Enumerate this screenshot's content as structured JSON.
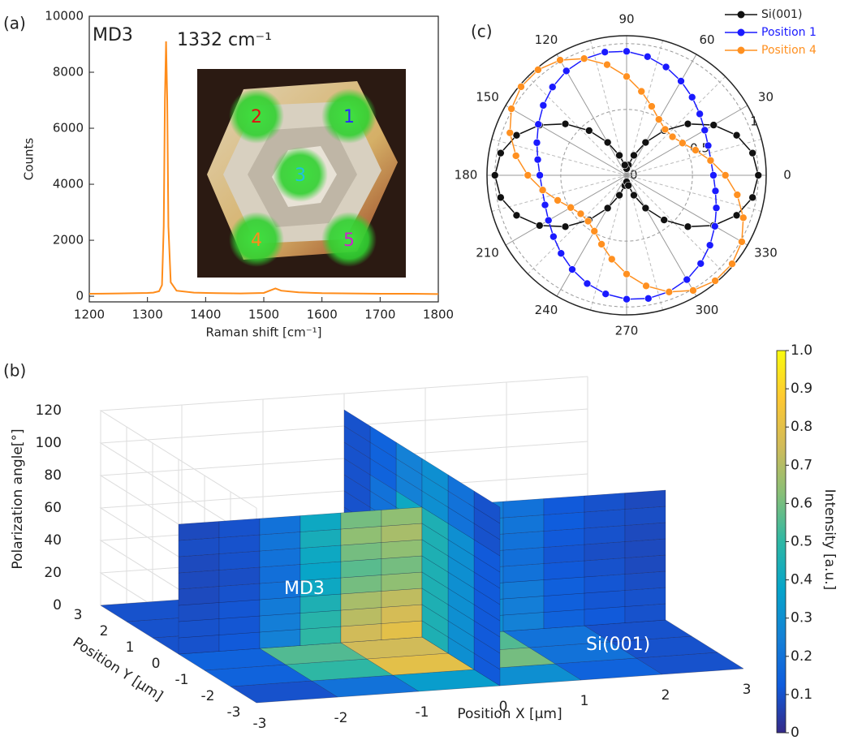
{
  "chart_data": [
    {
      "type": "line",
      "panel_label": "(a)",
      "annotations": [
        "MD3",
        "1332 cm⁻¹"
      ],
      "xlabel": "Raman shift [cm⁻¹]",
      "ylabel": "Counts",
      "x": [
        1200,
        1250,
        1300,
        1310,
        1320,
        1325,
        1328,
        1330,
        1332,
        1334,
        1336,
        1340,
        1350,
        1380,
        1420,
        1460,
        1500,
        1520,
        1530,
        1560,
        1600,
        1650,
        1700,
        1750,
        1800
      ],
      "values": [
        90,
        100,
        120,
        130,
        180,
        400,
        2500,
        7000,
        9100,
        7000,
        2500,
        500,
        200,
        130,
        110,
        100,
        120,
        280,
        200,
        140,
        110,
        100,
        90,
        90,
        80
      ],
      "color": "#ff8c1a",
      "xlim": [
        1200,
        1800
      ],
      "ylim": [
        -200,
        10000
      ],
      "xticks": [
        1200,
        1300,
        1400,
        1500,
        1600,
        1700,
        1800
      ],
      "yticks": [
        0,
        2000,
        4000,
        6000,
        8000,
        10000
      ],
      "spot_labels": [
        "1",
        "2",
        "3",
        "4",
        "5"
      ],
      "spot_colors": [
        "#2a2aff",
        "#e01010",
        "#20c0e0",
        "#ff8c1a",
        "#d020d0"
      ]
    },
    {
      "type": "polar",
      "panel_label": "(c)",
      "theta": [
        0,
        10,
        20,
        30,
        40,
        50,
        60,
        70,
        80,
        90,
        100,
        110,
        120,
        130,
        140,
        150,
        160,
        170,
        180,
        190,
        200,
        210,
        220,
        230,
        240,
        250,
        260,
        270,
        280,
        290,
        300,
        310,
        320,
        330,
        340,
        350
      ],
      "series": [
        {
          "name": "Si(001)",
          "color": "#111111",
          "values": [
            1.0,
            0.971,
            0.889,
            0.763,
            0.607,
            0.443,
            0.288,
            0.161,
            0.079,
            0.05,
            0.079,
            0.161,
            0.288,
            0.443,
            0.607,
            0.763,
            0.889,
            0.971,
            1.0,
            0.971,
            0.889,
            0.763,
            0.607,
            0.443,
            0.288,
            0.161,
            0.079,
            0.05,
            0.079,
            0.161,
            0.288,
            0.443,
            0.607,
            0.763,
            0.889,
            0.971
          ]
        },
        {
          "name": "Position 1",
          "color": "#1a1aff",
          "values": [
            0.659,
            0.65,
            0.659,
            0.685,
            0.725,
            0.774,
            0.826,
            0.875,
            0.915,
            0.941,
            0.95,
            0.941,
            0.915,
            0.875,
            0.826,
            0.774,
            0.725,
            0.685,
            0.659,
            0.65,
            0.659,
            0.685,
            0.725,
            0.774,
            0.826,
            0.875,
            0.915,
            0.941,
            0.95,
            0.941,
            0.915,
            0.875,
            0.826,
            0.774,
            0.725,
            0.685
          ]
        },
        {
          "name": "Position 4",
          "color": "#ff9020",
          "values": [
            0.75,
            0.647,
            0.557,
            0.49,
            0.455,
            0.455,
            0.49,
            0.557,
            0.647,
            0.75,
            0.853,
            0.943,
            1.01,
            1.046,
            1.046,
            1.01,
            0.943,
            0.853,
            0.75,
            0.647,
            0.557,
            0.49,
            0.455,
            0.455,
            0.49,
            0.557,
            0.647,
            0.75,
            0.853,
            0.943,
            1.01,
            1.046,
            1.046,
            1.01,
            0.943,
            0.853
          ]
        }
      ],
      "rlim": [
        0,
        1.06
      ],
      "rticks": [
        0,
        0.5,
        1
      ],
      "theta_ticks": [
        0,
        30,
        60,
        90,
        120,
        150,
        180,
        210,
        240,
        270,
        300,
        330
      ],
      "legend": "upper right"
    },
    {
      "type": "surface3d",
      "panel_label": "(b)",
      "xlabel": "Position X [μm]",
      "ylabel": "Position Y [μm]",
      "zlabel": "Polarization angle[°]",
      "colorbar_label": "Intensity [a.u.]",
      "annotations": [
        "MD3",
        "Si(001)"
      ],
      "xlim": [
        -3,
        3
      ],
      "ylim": [
        -3,
        3
      ],
      "zlim": [
        0,
        120
      ],
      "xticks": [
        -3,
        -2,
        -1,
        0,
        1,
        2,
        3
      ],
      "yticks": [
        -3,
        -2,
        -1,
        0,
        1,
        2,
        3
      ],
      "zticks": [
        0,
        20,
        40,
        60,
        80,
        100,
        120
      ],
      "clim": [
        0,
        1
      ],
      "cticks": [
        0,
        0.1,
        0.2,
        0.3,
        0.4,
        0.5,
        0.6,
        0.7,
        0.8,
        0.9,
        {
          "value": 1,
          "label": "1.0"
        }
      ],
      "colormap": [
        "#352a87",
        "#0f5cdd",
        "#1481d6",
        "#06a4ca",
        "#2eb7a4",
        "#87bf77",
        "#d1bb59",
        "#fec832",
        "#f9fb0e"
      ],
      "floor": {
        "x": [
          -3,
          -2,
          -1,
          0,
          1,
          2,
          3
        ],
        "y": [
          -3,
          -2,
          -1,
          0,
          1,
          2,
          3
        ],
        "z": [
          [
            0.1,
            0.2,
            0.35,
            0.3,
            0.15,
            0.1
          ],
          [
            0.15,
            0.5,
            0.8,
            0.6,
            0.2,
            0.1
          ],
          [
            0.15,
            0.55,
            0.75,
            0.55,
            0.2,
            0.1
          ],
          [
            0.1,
            0.3,
            0.4,
            0.3,
            0.15,
            0.1
          ],
          [
            0.1,
            0.15,
            0.2,
            0.15,
            0.1,
            0.1
          ],
          [
            0.1,
            0.1,
            0.1,
            0.1,
            0.1,
            0.1
          ]
        ]
      },
      "x_wall": {
        "at_y": 0,
        "x": [
          -3,
          -2.5,
          -2,
          -1.5,
          -1,
          -0.5,
          0,
          0.5,
          1,
          1.5,
          2,
          2.5,
          3
        ],
        "angle": [
          0,
          10,
          20,
          30,
          40,
          50,
          60,
          70,
          80
        ],
        "z": [
          [
            0.1,
            0.12,
            0.25,
            0.5,
            0.75,
            0.8,
            0.55,
            0.3,
            0.25,
            0.15,
            0.12,
            0.1
          ],
          [
            0.1,
            0.11,
            0.24,
            0.48,
            0.71,
            0.76,
            0.52,
            0.29,
            0.24,
            0.14,
            0.11,
            0.1
          ],
          [
            0.09,
            0.11,
            0.23,
            0.45,
            0.68,
            0.72,
            0.5,
            0.27,
            0.23,
            0.14,
            0.11,
            0.09
          ],
          [
            0.08,
            0.1,
            0.2,
            0.4,
            0.6,
            0.64,
            0.44,
            0.24,
            0.2,
            0.12,
            0.1,
            0.08
          ],
          [
            0.08,
            0.09,
            0.19,
            0.38,
            0.56,
            0.6,
            0.41,
            0.23,
            0.19,
            0.11,
            0.09,
            0.08
          ],
          [
            0.08,
            0.1,
            0.2,
            0.4,
            0.6,
            0.64,
            0.44,
            0.24,
            0.2,
            0.12,
            0.1,
            0.08
          ],
          [
            0.09,
            0.1,
            0.21,
            0.43,
            0.64,
            0.68,
            0.47,
            0.26,
            0.21,
            0.13,
            0.1,
            0.09
          ],
          [
            0.08,
            0.1,
            0.2,
            0.4,
            0.6,
            0.64,
            0.44,
            0.24,
            0.2,
            0.12,
            0.1,
            0.08
          ]
        ]
      },
      "y_wall": {
        "at_x": 0,
        "y": [
          -3,
          -2,
          -1,
          0,
          1,
          2,
          3
        ],
        "angle": [
          0,
          10,
          20,
          30,
          40,
          50,
          60,
          70,
          80,
          90,
          100,
          110
        ],
        "z": [
          [
            0.12,
            0.3,
            0.45,
            0.4,
            0.2,
            0.1
          ],
          [
            0.12,
            0.3,
            0.45,
            0.4,
            0.2,
            0.1
          ],
          [
            0.12,
            0.3,
            0.45,
            0.4,
            0.2,
            0.1
          ],
          [
            0.12,
            0.3,
            0.45,
            0.4,
            0.2,
            0.1
          ],
          [
            0.12,
            0.3,
            0.45,
            0.4,
            0.2,
            0.1
          ],
          [
            0.12,
            0.3,
            0.45,
            0.4,
            0.2,
            0.1
          ],
          [
            0.12,
            0.3,
            0.45,
            0.4,
            0.2,
            0.1
          ],
          [
            0.12,
            0.3,
            0.45,
            0.4,
            0.2,
            0.1
          ],
          [
            0.1,
            0.2,
            0.3,
            0.25,
            0.15,
            0.1
          ],
          [
            0.1,
            0.2,
            0.3,
            0.25,
            0.15,
            0.1
          ],
          [
            0.1,
            0.2,
            0.3,
            0.25,
            0.15,
            0.1
          ]
        ]
      }
    }
  ]
}
